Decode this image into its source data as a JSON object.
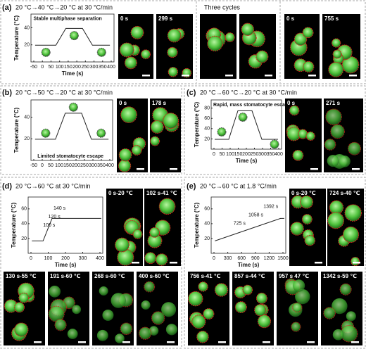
{
  "panels": [
    {
      "label": "(a)",
      "title": "20 °C→40 °C→20 °C at 30 °C/min",
      "plot": {
        "ylabel": "Temperature (°C)",
        "xlabel": "Time (s)",
        "yticks": [
          20,
          40
        ],
        "xticks": [
          -50,
          0,
          50,
          100,
          150,
          200,
          250,
          300,
          350,
          400
        ],
        "notes": [
          "Stable multiphase separation"
        ]
      },
      "images": [
        "0 s",
        "299 s"
      ],
      "cycles_caption": "Three cycles",
      "end_images": [
        "0 s",
        "755 s"
      ]
    },
    {
      "label": "(b)",
      "title": "20 °C→50 °C→20 °C at 30 °C/min",
      "plot": {
        "ylabel": "Temperature (°C)",
        "yticks": [
          20,
          40
        ],
        "xticks": [
          -50,
          0,
          50,
          100,
          150,
          200,
          250,
          300,
          350,
          400
        ],
        "notes": [
          "Limited stomatocyte escape"
        ]
      },
      "images": [
        "0 s",
        "178 s"
      ]
    },
    {
      "label": "(c)",
      "title": "20 °C→60 °C→20 °C at 30 °C/min",
      "plot": {
        "ylabel": "Temperature (°C)",
        "xlabel": "Time (s)",
        "yticks": [
          20,
          40,
          60,
          80
        ],
        "xticks": [
          0,
          50,
          100,
          150,
          200,
          250,
          300,
          350,
          400
        ],
        "notes": [
          "Rapid, mass stomatocyte escape"
        ]
      },
      "images": [
        "0 s",
        "271 s"
      ]
    },
    {
      "label": "(d)",
      "title": "20 °C→60 °C at 30 °C/min",
      "plot": {
        "ylabel": "Temperature (°C)",
        "xlabel": "Time (s)",
        "yticks": [
          20,
          40,
          60
        ],
        "xticks": [
          0,
          100,
          200,
          300,
          400
        ],
        "notes": [
          "140 s",
          "120 s",
          "100 s"
        ]
      },
      "images": [
        "0 s-20 ℃",
        "102 s-41 ℃",
        "130 s-55 ℃",
        "191 s-60 ℃",
        "268 s-60 ℃",
        "400 s-60 ℃"
      ]
    },
    {
      "label": "(e)",
      "title": "20 °C→60 °C at 1.8 °C/min",
      "plot": {
        "ylabel": "Temperature (°C)",
        "xlabel": "Time (s)",
        "yticks": [
          20,
          40,
          60
        ],
        "xticks": [
          0,
          300,
          600,
          900,
          1200,
          1500
        ],
        "notes": [
          "1392 s",
          "1058 s",
          "725 s"
        ]
      },
      "images": [
        "0 s-20 ℃",
        "724 s-40 ℃",
        "756 s-41 ℃",
        "857 s-44 ℃",
        "957 s 47 ℃",
        "1342 s-59 ℃"
      ]
    }
  ]
}
